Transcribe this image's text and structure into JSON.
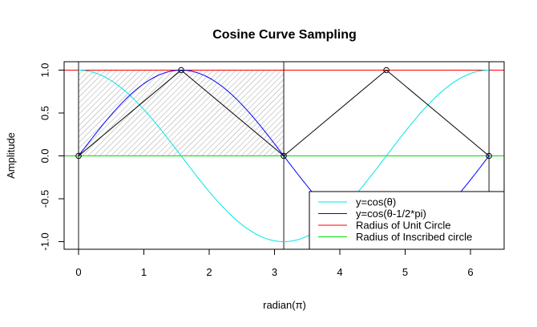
{
  "chart_data": {
    "type": "line",
    "title": "Cosine Curve Sampling",
    "xlabel": "radian(π)",
    "ylabel": "Amplitude",
    "xlim": [
      0,
      6.2832
    ],
    "ylim": [
      -1,
      1
    ],
    "x_ticks": [
      0,
      1,
      2,
      3,
      4,
      5,
      6
    ],
    "x_tick_labels": [
      "0",
      "1",
      "2",
      "3",
      "4",
      "5",
      "6"
    ],
    "y_ticks": [
      -1,
      -0.5,
      0,
      0.5,
      1
    ],
    "y_tick_labels": [
      "-1.0",
      "-0.5",
      "0.0",
      "0.5",
      "1.0"
    ],
    "series": [
      {
        "name": "y=cos(θ)",
        "color": "#00e5e5",
        "function": "cos(x)",
        "x_range": [
          0,
          6.2832
        ]
      },
      {
        "name": "y=cos(θ-1/2*pi)",
        "color": "#0000ff",
        "function": "cos(x-pi/2)",
        "x_range": [
          0,
          6.2832
        ]
      },
      {
        "name": "Radius of Unit Circle",
        "color": "#ff0000",
        "y_constant": 1
      },
      {
        "name": "Radius of Inscribed circle",
        "color": "#00dd00",
        "y_constant": 0
      }
    ],
    "sample_points": {
      "x": [
        0,
        1.5708,
        3.1416,
        4.7124,
        6.2832
      ],
      "y": [
        0,
        1,
        0,
        1,
        0
      ],
      "color": "#000000"
    },
    "vertical_lines": [
      0,
      3.1416,
      6.2832
    ],
    "hatched_region": {
      "x": [
        0,
        3.1416
      ],
      "y": [
        0,
        1
      ]
    },
    "legend_position": "bottom-right"
  }
}
